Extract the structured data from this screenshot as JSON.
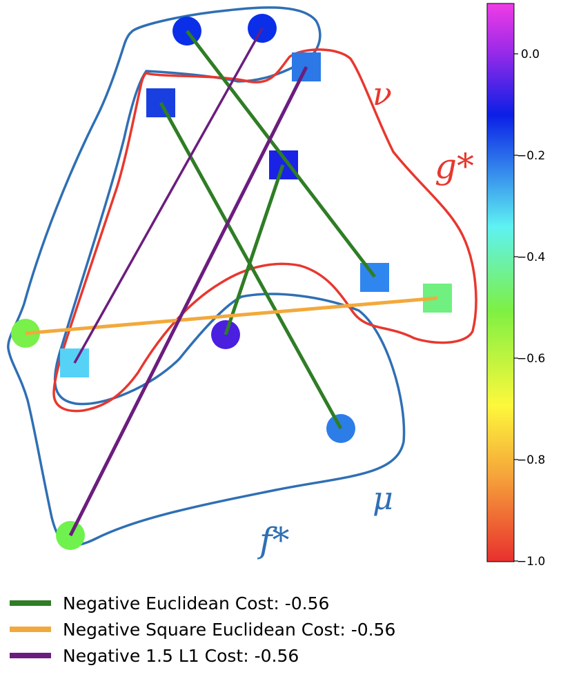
{
  "labels": {
    "nu": "ν",
    "g_star": "g*",
    "mu": "μ",
    "f_star": "f*"
  },
  "colors": {
    "red_region": "#e8372e",
    "blue_region": "#2f6fb4",
    "euclidean_line": "#2f7d25",
    "square_euclidean_line": "#f2a93b",
    "l1_line": "#6b1d7e"
  },
  "colorbar": {
    "min": -1.0,
    "max": 0.1,
    "ticks": [
      "0.0",
      "−0.2",
      "−0.4",
      "−0.6",
      "−0.8",
      "−1.0"
    ],
    "tick_values": [
      0.0,
      -0.2,
      -0.4,
      -0.6,
      -0.8,
      -1.0
    ]
  },
  "legend": {
    "items": [
      {
        "label": "Negative Euclidean Cost: -0.56",
        "color": "#2f7d25"
      },
      {
        "label": "Negative Square Euclidean Cost: -0.56",
        "color": "#f2a93b"
      },
      {
        "label": "Negative 1.5 L1 Cost: -0.56",
        "color": "#6b1d7e"
      }
    ]
  },
  "points": {
    "mu_circles": [
      {
        "color": "#0b2fe8"
      },
      {
        "color": "#0b2fe8"
      },
      {
        "color": "#7af04a"
      },
      {
        "color": "#4a1fe0"
      },
      {
        "color": "#2d7de8"
      },
      {
        "color": "#6ff24e"
      }
    ],
    "nu_squares": [
      {
        "color": "#2b78e6"
      },
      {
        "color": "#1a3fe0"
      },
      {
        "color": "#1a22e6"
      },
      {
        "color": "#2f86ee"
      },
      {
        "color": "#6ff080"
      },
      {
        "color": "#56d2f6"
      }
    ]
  }
}
